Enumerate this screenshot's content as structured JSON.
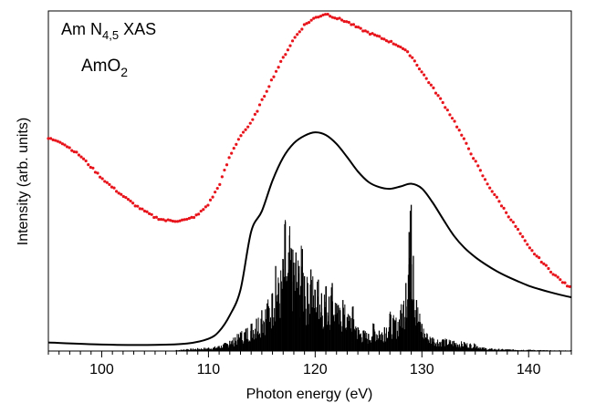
{
  "chart_data": {
    "type": "line",
    "annotation_line1": "Am N",
    "annotation_line1_sub": "4,5",
    "annotation_line1_suffix": " XAS",
    "annotation_line2": "AmO",
    "annotation_line2_sub": "2",
    "xlabel": "Photon energy (eV)",
    "ylabel": "Intensity (arb. units)",
    "xlim": [
      95,
      144
    ],
    "ylim": [
      0,
      1
    ],
    "x_ticks": [
      100,
      110,
      120,
      130,
      140
    ],
    "x_minor_step": 1,
    "y_ticks_labeled": false,
    "grid": false,
    "legend": "none",
    "colors": {
      "experiment": "#e8141c",
      "calculation": "#000000",
      "sticks": "#000000"
    },
    "series": [
      {
        "style": "dots",
        "x": [
          95,
          96,
          97,
          98,
          99,
          100,
          101,
          102,
          103,
          104,
          105,
          106,
          107,
          108,
          109,
          110,
          111,
          112,
          113,
          114,
          115,
          116,
          117,
          118,
          119,
          120,
          121,
          122,
          123,
          124,
          125,
          126,
          127,
          128,
          129,
          130,
          131,
          132,
          133,
          134,
          135,
          136,
          137,
          138,
          139,
          140,
          141,
          142,
          143,
          144
        ],
        "y": [
          0.625,
          0.618,
          0.597,
          0.574,
          0.541,
          0.509,
          0.481,
          0.456,
          0.432,
          0.411,
          0.393,
          0.384,
          0.383,
          0.386,
          0.4,
          0.432,
          0.487,
          0.572,
          0.634,
          0.67,
          0.735,
          0.802,
          0.862,
          0.918,
          0.959,
          0.98,
          0.992,
          0.979,
          0.968,
          0.95,
          0.936,
          0.923,
          0.91,
          0.895,
          0.868,
          0.82,
          0.775,
          0.728,
          0.678,
          0.618,
          0.558,
          0.498,
          0.451,
          0.403,
          0.356,
          0.305,
          0.271,
          0.237,
          0.208,
          0.183
        ]
      },
      {
        "style": "line",
        "x": [
          95,
          100,
          105,
          108,
          110,
          111,
          112,
          113,
          114,
          115,
          116,
          117,
          118,
          119,
          120,
          121,
          122,
          123,
          124,
          125,
          126,
          127,
          128,
          129,
          130,
          131,
          132,
          133,
          134,
          135,
          136,
          137,
          138,
          139,
          140,
          141,
          142,
          143,
          144
        ],
        "y": [
          0.025,
          0.019,
          0.018,
          0.022,
          0.036,
          0.058,
          0.105,
          0.18,
          0.351,
          0.411,
          0.501,
          0.569,
          0.611,
          0.633,
          0.643,
          0.635,
          0.609,
          0.57,
          0.528,
          0.497,
          0.482,
          0.477,
          0.484,
          0.492,
          0.478,
          0.437,
          0.387,
          0.339,
          0.303,
          0.276,
          0.254,
          0.235,
          0.219,
          0.205,
          0.192,
          0.182,
          0.173,
          0.165,
          0.158
        ]
      },
      {
        "style": "sticks",
        "x": [
          107,
          108,
          109,
          110,
          111,
          111.5,
          112,
          112.5,
          113,
          113.5,
          114,
          114.5,
          115,
          115.5,
          116,
          116.3,
          116.6,
          117,
          117.2,
          117.4,
          117.6,
          117.8,
          118,
          118.2,
          118.5,
          118.8,
          119,
          119.3,
          119.6,
          120,
          120.3,
          120.6,
          121,
          121.3,
          121.6,
          122,
          122.3,
          122.6,
          123,
          123.5,
          124,
          124.5,
          125,
          125.5,
          126,
          126.5,
          127,
          127.5,
          128,
          128.5,
          128.8,
          129,
          129.2,
          129.5,
          130,
          130.5,
          131,
          132,
          133,
          134,
          135,
          136,
          138,
          140,
          142,
          144
        ],
        "y": [
          0.003,
          0.006,
          0.008,
          0.01,
          0.015,
          0.022,
          0.03,
          0.04,
          0.055,
          0.065,
          0.08,
          0.095,
          0.12,
          0.14,
          0.17,
          0.25,
          0.2,
          0.27,
          0.38,
          0.22,
          0.34,
          0.3,
          0.26,
          0.29,
          0.25,
          0.3,
          0.22,
          0.2,
          0.24,
          0.18,
          0.21,
          0.17,
          0.19,
          0.16,
          0.2,
          0.14,
          0.12,
          0.15,
          0.1,
          0.13,
          0.07,
          0.06,
          0.05,
          0.08,
          0.06,
          0.07,
          0.11,
          0.09,
          0.12,
          0.2,
          0.35,
          0.43,
          0.28,
          0.15,
          0.08,
          0.05,
          0.04,
          0.035,
          0.03,
          0.025,
          0.02,
          0.008,
          0.005,
          0.004,
          0.002,
          0.002
        ]
      }
    ]
  }
}
